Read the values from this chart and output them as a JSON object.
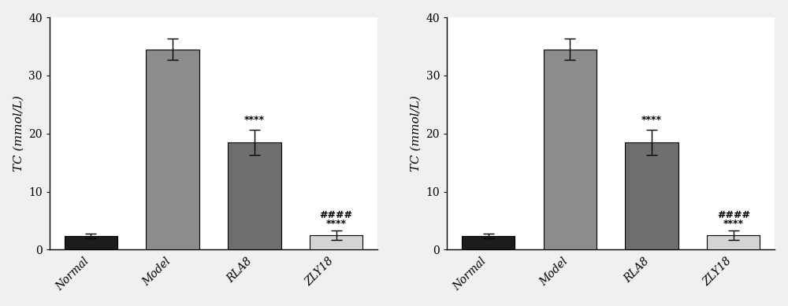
{
  "categories": [
    "Normal",
    "Model",
    "RLA8",
    "ZLY18"
  ],
  "values": [
    2.3,
    34.5,
    18.5,
    2.5
  ],
  "errors": [
    0.4,
    1.8,
    2.2,
    0.8
  ],
  "bar_colors": [
    "#1c1c1c",
    "#8c8c8c",
    "#6e6e6e",
    "#d4d4d4"
  ],
  "bar_edgecolors": [
    "#000000",
    "#000000",
    "#000000",
    "#000000"
  ],
  "ylabel": "TC (mmol/L)",
  "ylim": [
    0,
    40
  ],
  "yticks": [
    0,
    10,
    20,
    30,
    40
  ],
  "annotations": {
    "RLA8": "****",
    "ZLY18_stars": "****",
    "ZLY18_hash": "####"
  },
  "background_color": "#ffffff",
  "fig_background": "#f0f0f0",
  "tick_fontsize": 10,
  "label_fontsize": 11,
  "annot_fontsize": 9,
  "bar_width": 0.65
}
